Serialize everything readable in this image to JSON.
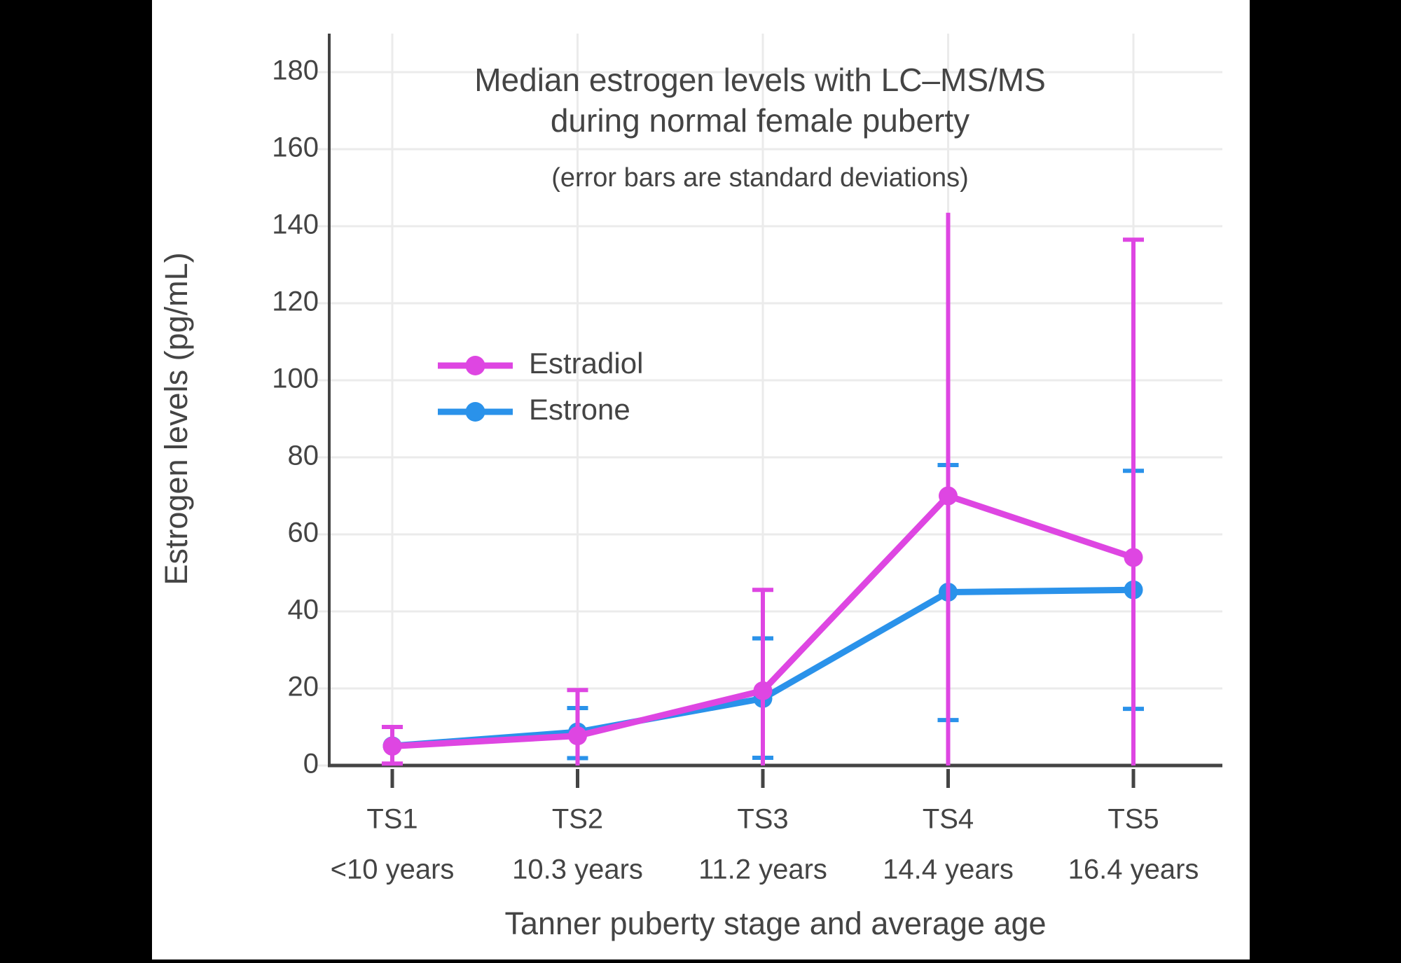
{
  "chart_data": {
    "type": "line",
    "title_lines": [
      "Median estrogen levels with LC–MS/MS",
      "during normal female puberty"
    ],
    "subtitle": "(error bars are standard deviations)",
    "xlabel": "Tanner puberty stage and average age",
    "ylabel": "Estrogen levels (pg/mL)",
    "categories": [
      "TS1",
      "TS2",
      "TS3",
      "TS4",
      "TS5"
    ],
    "category_sublabels": [
      "<10 years",
      "10.3 years",
      "11.2 years",
      "14.4 years",
      "16.4 years"
    ],
    "y_ticks": [
      0,
      20,
      40,
      60,
      80,
      100,
      120,
      140,
      160,
      180
    ],
    "ylim": [
      0,
      190
    ],
    "grid": true,
    "units": "pg/mL",
    "legend_position": "inside-left-middle",
    "series": [
      {
        "name": "Estrone",
        "color": "#2a92ea",
        "values": [
          5.1,
          8.7,
          17.4,
          45,
          45.6
        ],
        "error_top": [
          null,
          14.9,
          33,
          78,
          76.5
        ],
        "error_bottom": [
          null,
          1.9,
          2,
          11.8,
          14.7
        ],
        "cap_top": [
          false,
          true,
          true,
          true,
          true
        ],
        "cap_bottom": [
          false,
          true,
          true,
          true,
          true
        ]
      },
      {
        "name": "Estradiol",
        "color": "#de46e2",
        "values": [
          5,
          7.7,
          19.4,
          70,
          54
        ],
        "error_top": [
          10,
          19.6,
          45.6,
          143.5,
          136.5
        ],
        "error_bottom": [
          0.5,
          0,
          0,
          0,
          0
        ],
        "cap_top": [
          true,
          true,
          true,
          false,
          true
        ],
        "cap_bottom": [
          true,
          false,
          false,
          false,
          false
        ]
      }
    ]
  },
  "legend": {
    "items": [
      {
        "label": "Estradiol",
        "color": "#de46e2"
      },
      {
        "label": "Estrone",
        "color": "#2a92ea"
      }
    ]
  },
  "colors": {
    "grid": "#ebebeb",
    "axis": "#444444",
    "text": "#444444",
    "background": "#ffffff",
    "frame": "#000000"
  }
}
